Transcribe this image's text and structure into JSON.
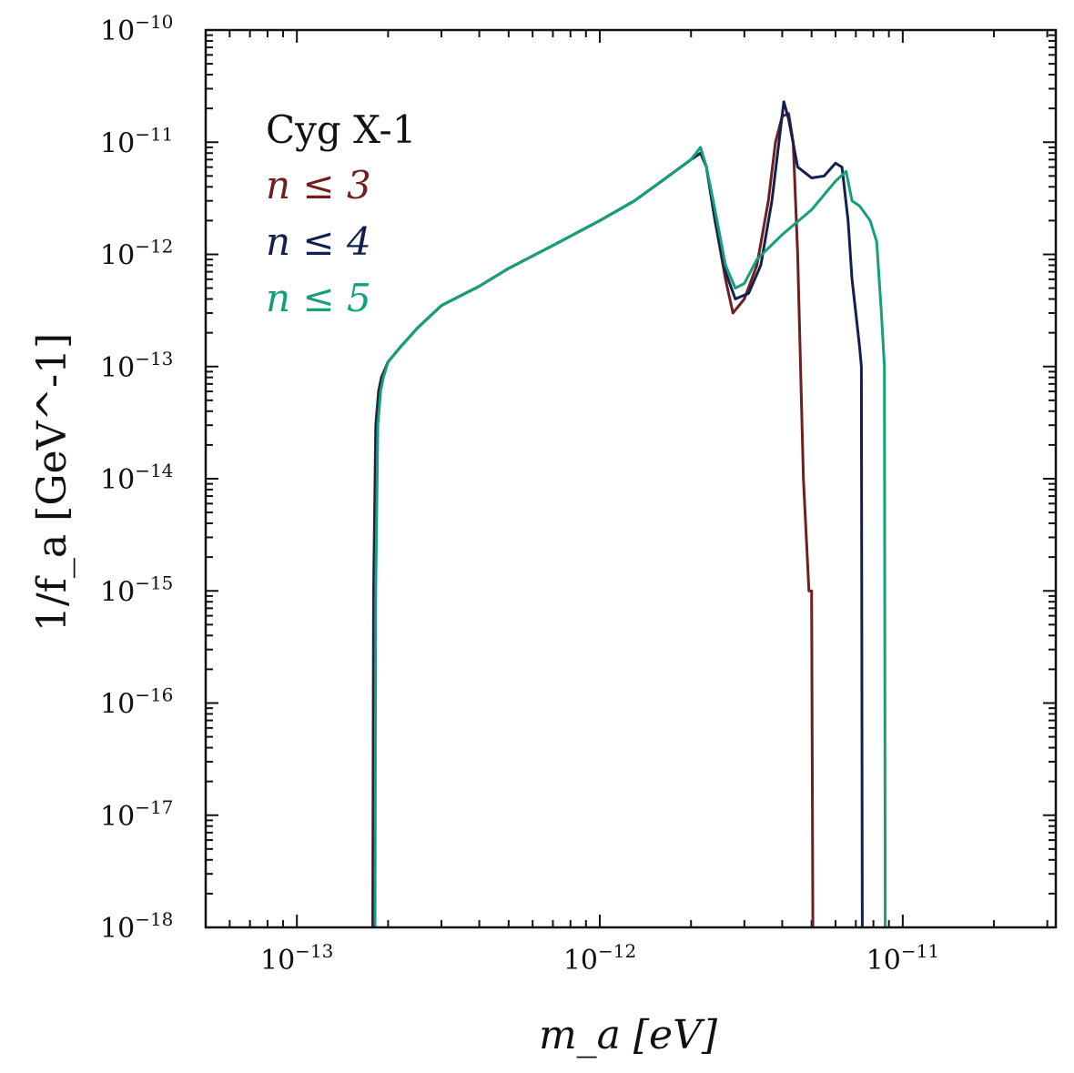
{
  "chart_data": {
    "type": "line",
    "title": "",
    "xlabel": "m_a [eV]",
    "ylabel": "1/f_a  [GeV^-1]",
    "xscale": "log",
    "yscale": "log",
    "xlim": [
      5e-14,
      3.2e-11
    ],
    "ylim": [
      1e-18,
      1e-10
    ],
    "grid": false,
    "legend": {
      "placement": "top-left",
      "title": "Cyg X-1",
      "entries": [
        "n ≤ 3",
        "n ≤ 4",
        "n ≤ 5"
      ]
    },
    "x_tick_labels": [
      {
        "value": 1e-13,
        "base": "10",
        "exp": "−13"
      },
      {
        "value": 1e-12,
        "base": "10",
        "exp": "−12"
      },
      {
        "value": 1e-11,
        "base": "10",
        "exp": "−11"
      }
    ],
    "y_tick_labels": [
      {
        "value": 1e-10,
        "base": "10",
        "exp": "−10"
      },
      {
        "value": 1e-11,
        "base": "10",
        "exp": "−11"
      },
      {
        "value": 1e-12,
        "base": "10",
        "exp": "−12"
      },
      {
        "value": 1e-13,
        "base": "10",
        "exp": "−13"
      },
      {
        "value": 1e-14,
        "base": "10",
        "exp": "−14"
      },
      {
        "value": 1e-15,
        "base": "10",
        "exp": "−15"
      },
      {
        "value": 1e-16,
        "base": "10",
        "exp": "−16"
      },
      {
        "value": 1e-17,
        "base": "10",
        "exp": "−17"
      },
      {
        "value": 1e-18,
        "base": "10",
        "exp": "−18"
      }
    ],
    "series": [
      {
        "name": "n ≤ 3",
        "color": "#6e1f1f",
        "x": [
          1.78e-13,
          1.79e-13,
          1.82e-13,
          1.86e-13,
          1.9e-13,
          2e-13,
          2.2e-13,
          2.5e-13,
          3e-13,
          4e-13,
          5e-13,
          7e-13,
          1e-12,
          1.3e-12,
          1.6e-12,
          2e-12,
          2.15e-12,
          2.25e-12,
          2.4e-12,
          2.6e-12,
          2.75e-12,
          3e-12,
          3.3e-12,
          3.6e-12,
          3.8e-12,
          4e-12,
          4.2e-12,
          4.35e-12,
          4.5e-12,
          4.7e-12,
          4.9e-12,
          5e-12,
          5.05e-12
        ],
        "y": [
          1e-18,
          1e-15,
          3e-14,
          6e-14,
          8e-14,
          1.1e-13,
          1.5e-13,
          2.2e-13,
          3.5e-13,
          5.2e-13,
          7.5e-13,
          1.2e-12,
          2e-12,
          3e-12,
          4.5e-12,
          7e-12,
          8e-12,
          6e-12,
          2e-12,
          6e-13,
          3e-13,
          4e-13,
          8e-13,
          3e-12,
          1e-11,
          1.7e-11,
          1.8e-11,
          1e-11,
          1e-12,
          1e-14,
          1e-15,
          1e-15,
          1e-18
        ]
      },
      {
        "name": "n ≤ 4",
        "color": "#112050",
        "x": [
          1.79e-13,
          1.8e-13,
          1.83e-13,
          1.87e-13,
          1.91e-13,
          2e-13,
          2.2e-13,
          2.5e-13,
          3e-13,
          4e-13,
          5e-13,
          7e-13,
          1e-12,
          1.3e-12,
          1.6e-12,
          2e-12,
          2.15e-12,
          2.25e-12,
          2.4e-12,
          2.6e-12,
          2.8e-12,
          3.1e-12,
          3.4e-12,
          3.7e-12,
          3.9e-12,
          4.05e-12,
          4.2e-12,
          4.5e-12,
          5e-12,
          5.5e-12,
          6e-12,
          6.3e-12,
          6.6e-12,
          6.8e-12,
          7e-12,
          7.2e-12,
          7.3e-12,
          7.35e-12
        ],
        "y": [
          1e-18,
          1e-15,
          3e-14,
          6e-14,
          8e-14,
          1.1e-13,
          1.5e-13,
          2.2e-13,
          3.5e-13,
          5.2e-13,
          7.5e-13,
          1.2e-12,
          2e-12,
          3e-12,
          4.5e-12,
          7e-12,
          8e-12,
          6e-12,
          2e-12,
          7e-13,
          4e-13,
          4.5e-13,
          8e-13,
          3e-12,
          1e-11,
          2.3e-11,
          1.6e-11,
          6e-12,
          4.8e-12,
          5e-12,
          6.5e-12,
          6e-12,
          2e-12,
          6e-13,
          3e-13,
          1.5e-13,
          1e-13,
          1e-18
        ]
      },
      {
        "name": "n ≤ 5",
        "color": "#13a07a",
        "x": [
          1.81e-13,
          1.82e-13,
          1.85e-13,
          1.89e-13,
          1.93e-13,
          2e-13,
          2.2e-13,
          2.5e-13,
          3e-13,
          4e-13,
          5e-13,
          7e-13,
          1e-12,
          1.3e-12,
          1.6e-12,
          2e-12,
          2.15e-12,
          2.25e-12,
          2.4e-12,
          2.6e-12,
          2.8e-12,
          3e-12,
          3.3e-12,
          4e-12,
          5e-12,
          6e-12,
          6.5e-12,
          6.8e-12,
          7.2e-12,
          7.8e-12,
          8.2e-12,
          8.5e-12,
          8.7e-12,
          8.75e-12
        ],
        "y": [
          1e-18,
          1e-15,
          3e-14,
          6e-14,
          8e-14,
          1.1e-13,
          1.5e-13,
          2.2e-13,
          3.5e-13,
          5.2e-13,
          7.5e-13,
          1.2e-12,
          2e-12,
          3e-12,
          4.5e-12,
          7e-12,
          9e-12,
          6e-12,
          2.5e-12,
          8e-13,
          5e-13,
          5.5e-13,
          9e-13,
          1.5e-12,
          2.5e-12,
          4.5e-12,
          5.5e-12,
          3e-12,
          2.7e-12,
          2e-12,
          1.3e-12,
          3e-13,
          1e-13,
          1e-18
        ]
      }
    ]
  }
}
